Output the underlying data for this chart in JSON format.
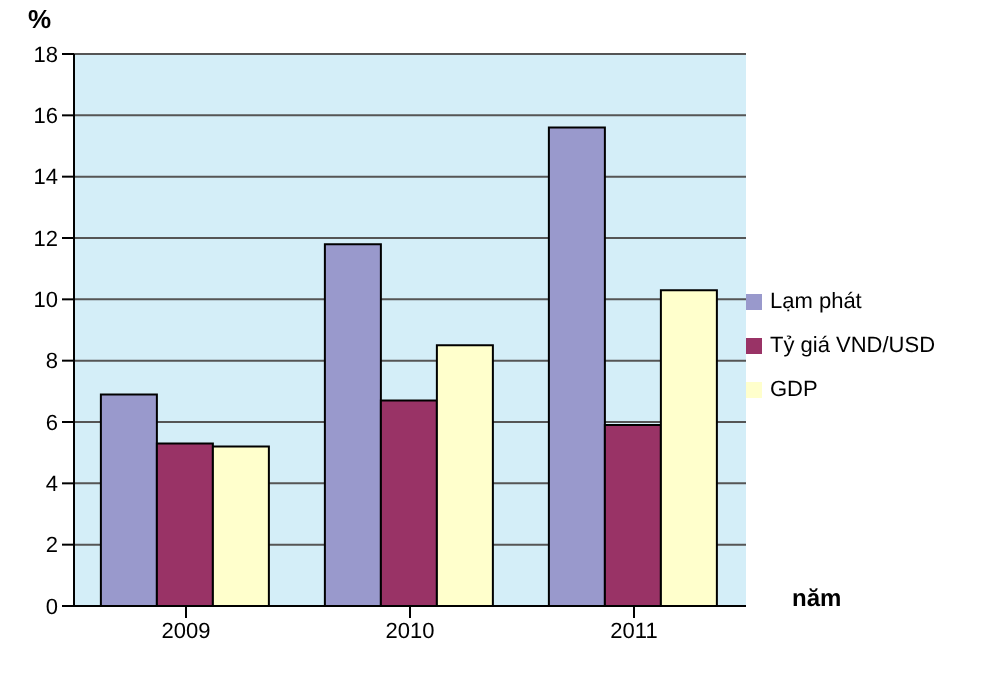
{
  "chart_data": {
    "type": "bar",
    "ylabel": "%",
    "xlabel": "năm",
    "categories": [
      "2009",
      "2010",
      "2011"
    ],
    "series": [
      {
        "name": "Lạm phát",
        "color": "#9999cc",
        "values": [
          6.9,
          11.8,
          15.6
        ]
      },
      {
        "name": "Tỷ giá VND/USD",
        "color": "#993366",
        "values": [
          5.3,
          6.7,
          5.9
        ]
      },
      {
        "name": "GDP",
        "color": "#ffffcc",
        "values": [
          5.2,
          8.5,
          10.3
        ]
      }
    ],
    "ylim": [
      0,
      18
    ],
    "yticks": [
      0,
      2,
      4,
      6,
      8,
      10,
      12,
      14,
      16,
      18
    ],
    "grid": "y",
    "legend": "right"
  }
}
